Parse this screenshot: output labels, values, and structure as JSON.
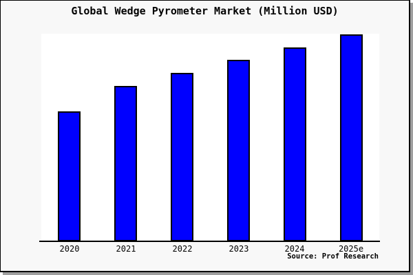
{
  "title": "Global Wedge Pyrometer Market (Million USD)",
  "source_note": "Source: Prof Research",
  "colors": {
    "bar_fill": "#0000ff",
    "bar_outline": "#000000",
    "frame_background": "#f8f8f8",
    "plot_background": "#ffffff",
    "axis": "#000000",
    "border": "#000000",
    "shadow": "#9e9e9e",
    "text": "#000000"
  },
  "chart_data": {
    "type": "bar",
    "title": "Global Wedge Pyrometer Market (Million USD)",
    "categories": [
      "2020",
      "2021",
      "2022",
      "2023",
      "2024",
      "2025e"
    ],
    "values": [
      62.7,
      75.0,
      81.3,
      87.7,
      93.7,
      100.0
    ],
    "value_basis": "relative bar heights, tallest bar (2025e) = 100; y-axis has no tick labels in the chart",
    "xlabel": "",
    "ylabel": "",
    "ylim": [
      0,
      100.3
    ],
    "grid": false,
    "legend": false,
    "source_note": "Source: Prof Research"
  }
}
